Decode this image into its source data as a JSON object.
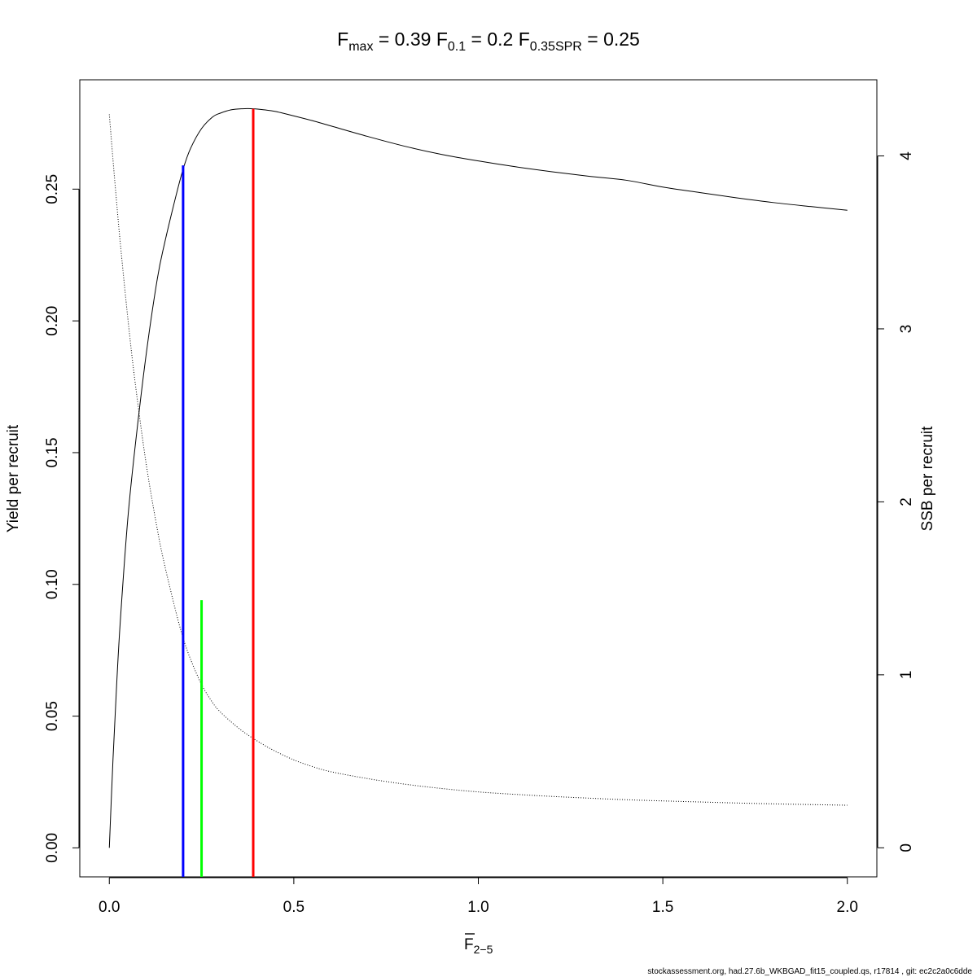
{
  "chart_data": {
    "type": "line",
    "title": {
      "fmax": {
        "label": "F",
        "sub": "max",
        "value": "0.39"
      },
      "f01": {
        "label": "F",
        "sub": "0.1",
        "value": "0.2"
      },
      "fspr": {
        "label": "F",
        "sub": "0.35SPR",
        "value": "0.25"
      }
    },
    "xlabel": {
      "main": "F",
      "sub": "2−5"
    },
    "ylabel_left": "Yield per recruit",
    "ylabel_right": "SSB per recruit",
    "xlim": [
      -0.08,
      2.08
    ],
    "ylim_left": [
      -0.011,
      0.2915
    ],
    "ylim_right": [
      -0.168,
      4.44
    ],
    "x_ticks": [
      {
        "value": 0.0,
        "label": "0.0"
      },
      {
        "value": 0.5,
        "label": "0.5"
      },
      {
        "value": 1.0,
        "label": "1.0"
      },
      {
        "value": 1.5,
        "label": "1.5"
      },
      {
        "value": 2.0,
        "label": "2.0"
      }
    ],
    "y_ticks_left": [
      {
        "value": 0.0,
        "label": "0.00"
      },
      {
        "value": 0.05,
        "label": "0.05"
      },
      {
        "value": 0.1,
        "label": "0.10"
      },
      {
        "value": 0.15,
        "label": "0.15"
      },
      {
        "value": 0.2,
        "label": "0.20"
      },
      {
        "value": 0.25,
        "label": "0.25"
      }
    ],
    "y_ticks_right": [
      {
        "value": 0,
        "label": "0"
      },
      {
        "value": 1,
        "label": "1"
      },
      {
        "value": 2,
        "label": "2"
      },
      {
        "value": 3,
        "label": "3"
      },
      {
        "value": 4,
        "label": "4"
      }
    ],
    "series": [
      {
        "axis": "left",
        "style": "solid",
        "color": "#000000",
        "x": [
          0,
          0.01,
          0.02,
          0.03,
          0.05,
          0.07,
          0.1,
          0.13,
          0.15,
          0.18,
          0.2,
          0.22,
          0.25,
          0.28,
          0.3,
          0.33,
          0.36,
          0.39,
          0.42,
          0.45,
          0.5,
          0.55,
          0.6,
          0.7,
          0.8,
          0.9,
          1.0,
          1.1,
          1.2,
          1.3,
          1.4,
          1.5,
          1.6,
          1.7,
          1.8,
          1.9,
          2.0
        ],
        "y": [
          0,
          0.0336,
          0.0622,
          0.0865,
          0.1247,
          0.1523,
          0.1874,
          0.2159,
          0.2296,
          0.2471,
          0.2576,
          0.2654,
          0.273,
          0.2774,
          0.2788,
          0.2801,
          0.2805,
          0.2805,
          0.2801,
          0.2795,
          0.2778,
          0.276,
          0.274,
          0.27,
          0.2663,
          0.2632,
          0.2607,
          0.2585,
          0.2566,
          0.2549,
          0.2534,
          0.2508,
          0.2487,
          0.2467,
          0.2449,
          0.2434,
          0.242
        ]
      },
      {
        "axis": "right",
        "style": "dotted",
        "color": "#000000",
        "x": [
          0,
          0.01,
          0.02,
          0.03,
          0.05,
          0.07,
          0.1,
          0.13,
          0.15,
          0.18,
          0.2,
          0.22,
          0.25,
          0.28,
          0.3,
          0.33,
          0.36,
          0.39,
          0.42,
          0.45,
          0.5,
          0.55,
          0.6,
          0.7,
          0.8,
          0.9,
          1.0,
          1.1,
          1.2,
          1.3,
          1.4,
          1.5,
          1.6,
          1.7,
          1.8,
          1.9,
          2.0
        ],
        "y": [
          4.24,
          3.977,
          3.727,
          3.491,
          3.065,
          2.69,
          2.218,
          1.842,
          1.634,
          1.368,
          1.213,
          1.091,
          0.944,
          0.839,
          0.787,
          0.728,
          0.676,
          0.632,
          0.593,
          0.558,
          0.508,
          0.47,
          0.44,
          0.4,
          0.368,
          0.343,
          0.323,
          0.309,
          0.297,
          0.287,
          0.278,
          0.271,
          0.265,
          0.259,
          0.254,
          0.25,
          0.246
        ]
      }
    ],
    "reference_lines": [
      {
        "name": "F0.1",
        "x": 0.2,
        "y_top": 0.259,
        "color": "#0000ff"
      },
      {
        "name": "F0.35SPR",
        "x": 0.25,
        "y_top": 0.094,
        "color": "#00ff00"
      },
      {
        "name": "Fmax",
        "x": 0.39,
        "y_top": 0.2805,
        "color": "#ff0000"
      }
    ],
    "grid": false
  },
  "footer": "stockassessment.org, had.27.6b_WKBGAD_fit15_coupled.qs, r17814 , git: ec2c2a0c6dde"
}
